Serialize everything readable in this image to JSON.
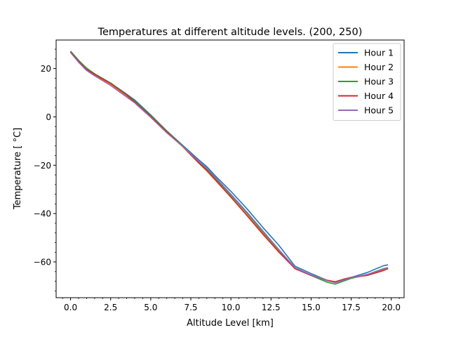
{
  "chart_data": {
    "type": "line",
    "title": "Temperatures at different altitude levels. (200, 250)",
    "xlabel": "Altitude Level [km]",
    "ylabel": "Temperature [$^\\circ$C]",
    "ylabel_display": "Temperature [ °C]",
    "xlim": [
      -0.9,
      20.8
    ],
    "ylim": [
      -74.8,
      31.8
    ],
    "xticks": [
      0.0,
      2.5,
      5.0,
      7.5,
      10.0,
      12.5,
      15.0,
      17.5,
      20.0
    ],
    "xtick_labels": [
      "0.0",
      "2.5",
      "5.0",
      "7.5",
      "10.0",
      "12.5",
      "15.0",
      "17.5",
      "20.0"
    ],
    "yticks": [
      20,
      0,
      -20,
      -40,
      -60
    ],
    "ytick_labels": [
      "20",
      "0",
      "−20",
      "−40",
      "−60"
    ],
    "grid": false,
    "legend_position": "top-right",
    "series": [
      {
        "name": "Hour 1",
        "color": "#1f77b4",
        "points": [
          [
            0.0,
            27.2
          ],
          [
            0.5,
            23.4
          ],
          [
            1.0,
            20.0
          ],
          [
            1.5,
            17.8
          ],
          [
            2.5,
            14.0
          ],
          [
            3.5,
            9.4
          ],
          [
            4.0,
            7.0
          ],
          [
            5.0,
            0.8
          ],
          [
            6.0,
            -5.8
          ],
          [
            7.0,
            -11.8
          ],
          [
            8.0,
            -17.8
          ],
          [
            8.5,
            -20.6
          ],
          [
            9.0,
            -24.2
          ],
          [
            10.0,
            -30.8
          ],
          [
            11.0,
            -38.0
          ],
          [
            12.0,
            -45.8
          ],
          [
            13.0,
            -53.2
          ],
          [
            14.0,
            -61.8
          ],
          [
            15.0,
            -64.8
          ],
          [
            16.0,
            -67.6
          ],
          [
            16.5,
            -68.6
          ],
          [
            17.0,
            -67.4
          ],
          [
            17.5,
            -66.4
          ],
          [
            18.5,
            -64.4
          ],
          [
            19.5,
            -61.6
          ],
          [
            19.8,
            -61.2
          ]
        ]
      },
      {
        "name": "Hour 2",
        "color": "#ff7f0e",
        "points": [
          [
            0.0,
            27.0
          ],
          [
            0.5,
            23.2
          ],
          [
            1.0,
            19.8
          ],
          [
            1.5,
            17.4
          ],
          [
            2.5,
            13.2
          ],
          [
            3.5,
            8.4
          ],
          [
            4.0,
            6.0
          ],
          [
            5.0,
            0.0
          ],
          [
            6.0,
            -6.4
          ],
          [
            7.0,
            -12.4
          ],
          [
            8.0,
            -19.2
          ],
          [
            8.5,
            -22.4
          ],
          [
            9.0,
            -26.0
          ],
          [
            10.0,
            -33.2
          ],
          [
            11.0,
            -40.6
          ],
          [
            12.0,
            -48.2
          ],
          [
            13.0,
            -55.6
          ],
          [
            14.0,
            -62.8
          ],
          [
            15.0,
            -65.4
          ],
          [
            16.0,
            -67.6
          ],
          [
            16.5,
            -68.2
          ],
          [
            17.0,
            -67.4
          ],
          [
            17.5,
            -66.8
          ],
          [
            18.5,
            -65.4
          ],
          [
            19.5,
            -63.2
          ],
          [
            19.8,
            -62.6
          ]
        ]
      },
      {
        "name": "Hour 3",
        "color": "#2ca02c",
        "points": [
          [
            0.0,
            27.2
          ],
          [
            0.5,
            23.4
          ],
          [
            1.0,
            20.2
          ],
          [
            1.5,
            17.8
          ],
          [
            2.5,
            14.0
          ],
          [
            3.5,
            9.2
          ],
          [
            4.0,
            6.6
          ],
          [
            5.0,
            0.6
          ],
          [
            6.0,
            -5.8
          ],
          [
            7.0,
            -12.0
          ],
          [
            8.0,
            -18.6
          ],
          [
            8.5,
            -21.8
          ],
          [
            9.0,
            -25.2
          ],
          [
            10.0,
            -32.4
          ],
          [
            11.0,
            -39.8
          ],
          [
            12.0,
            -47.6
          ],
          [
            13.0,
            -55.2
          ],
          [
            14.0,
            -62.8
          ],
          [
            15.0,
            -65.6
          ],
          [
            16.0,
            -68.4
          ],
          [
            16.5,
            -69.2
          ],
          [
            17.0,
            -68.0
          ],
          [
            17.5,
            -66.8
          ],
          [
            18.5,
            -65.2
          ],
          [
            19.5,
            -62.8
          ],
          [
            19.8,
            -62.4
          ]
        ]
      },
      {
        "name": "Hour 4",
        "color": "#d62728",
        "points": [
          [
            0.0,
            26.8
          ],
          [
            0.5,
            23.0
          ],
          [
            1.0,
            19.6
          ],
          [
            1.5,
            17.6
          ],
          [
            2.5,
            13.8
          ],
          [
            3.5,
            9.0
          ],
          [
            4.0,
            6.2
          ],
          [
            5.0,
            0.2
          ],
          [
            6.0,
            -6.2
          ],
          [
            7.0,
            -12.2
          ],
          [
            8.0,
            -19.0
          ],
          [
            8.5,
            -22.2
          ],
          [
            9.0,
            -25.8
          ],
          [
            10.0,
            -33.2
          ],
          [
            11.0,
            -40.8
          ],
          [
            12.0,
            -48.6
          ],
          [
            13.0,
            -56.0
          ],
          [
            14.0,
            -62.8
          ],
          [
            15.0,
            -65.6
          ],
          [
            16.0,
            -67.6
          ],
          [
            16.5,
            -68.2
          ],
          [
            17.0,
            -67.2
          ],
          [
            17.5,
            -66.4
          ],
          [
            18.5,
            -65.6
          ],
          [
            19.5,
            -63.6
          ],
          [
            19.8,
            -62.8
          ]
        ]
      },
      {
        "name": "Hour 5",
        "color": "#9467bd",
        "points": [
          [
            0.0,
            26.6
          ],
          [
            0.5,
            22.6
          ],
          [
            1.0,
            19.2
          ],
          [
            1.5,
            17.0
          ],
          [
            2.5,
            13.0
          ],
          [
            3.5,
            8.2
          ],
          [
            4.0,
            5.8
          ],
          [
            5.0,
            -0.2
          ],
          [
            6.0,
            -6.6
          ],
          [
            7.0,
            -12.2
          ],
          [
            8.0,
            -18.4
          ],
          [
            8.5,
            -21.2
          ],
          [
            9.0,
            -24.8
          ],
          [
            10.0,
            -32.0
          ],
          [
            11.0,
            -39.4
          ],
          [
            12.0,
            -47.2
          ],
          [
            13.0,
            -55.0
          ],
          [
            14.0,
            -62.4
          ],
          [
            15.0,
            -65.4
          ],
          [
            16.0,
            -67.8
          ],
          [
            16.5,
            -68.6
          ],
          [
            17.0,
            -67.6
          ],
          [
            17.5,
            -66.6
          ],
          [
            18.5,
            -65.2
          ],
          [
            19.5,
            -63.0
          ],
          [
            19.8,
            -62.4
          ]
        ]
      }
    ]
  }
}
